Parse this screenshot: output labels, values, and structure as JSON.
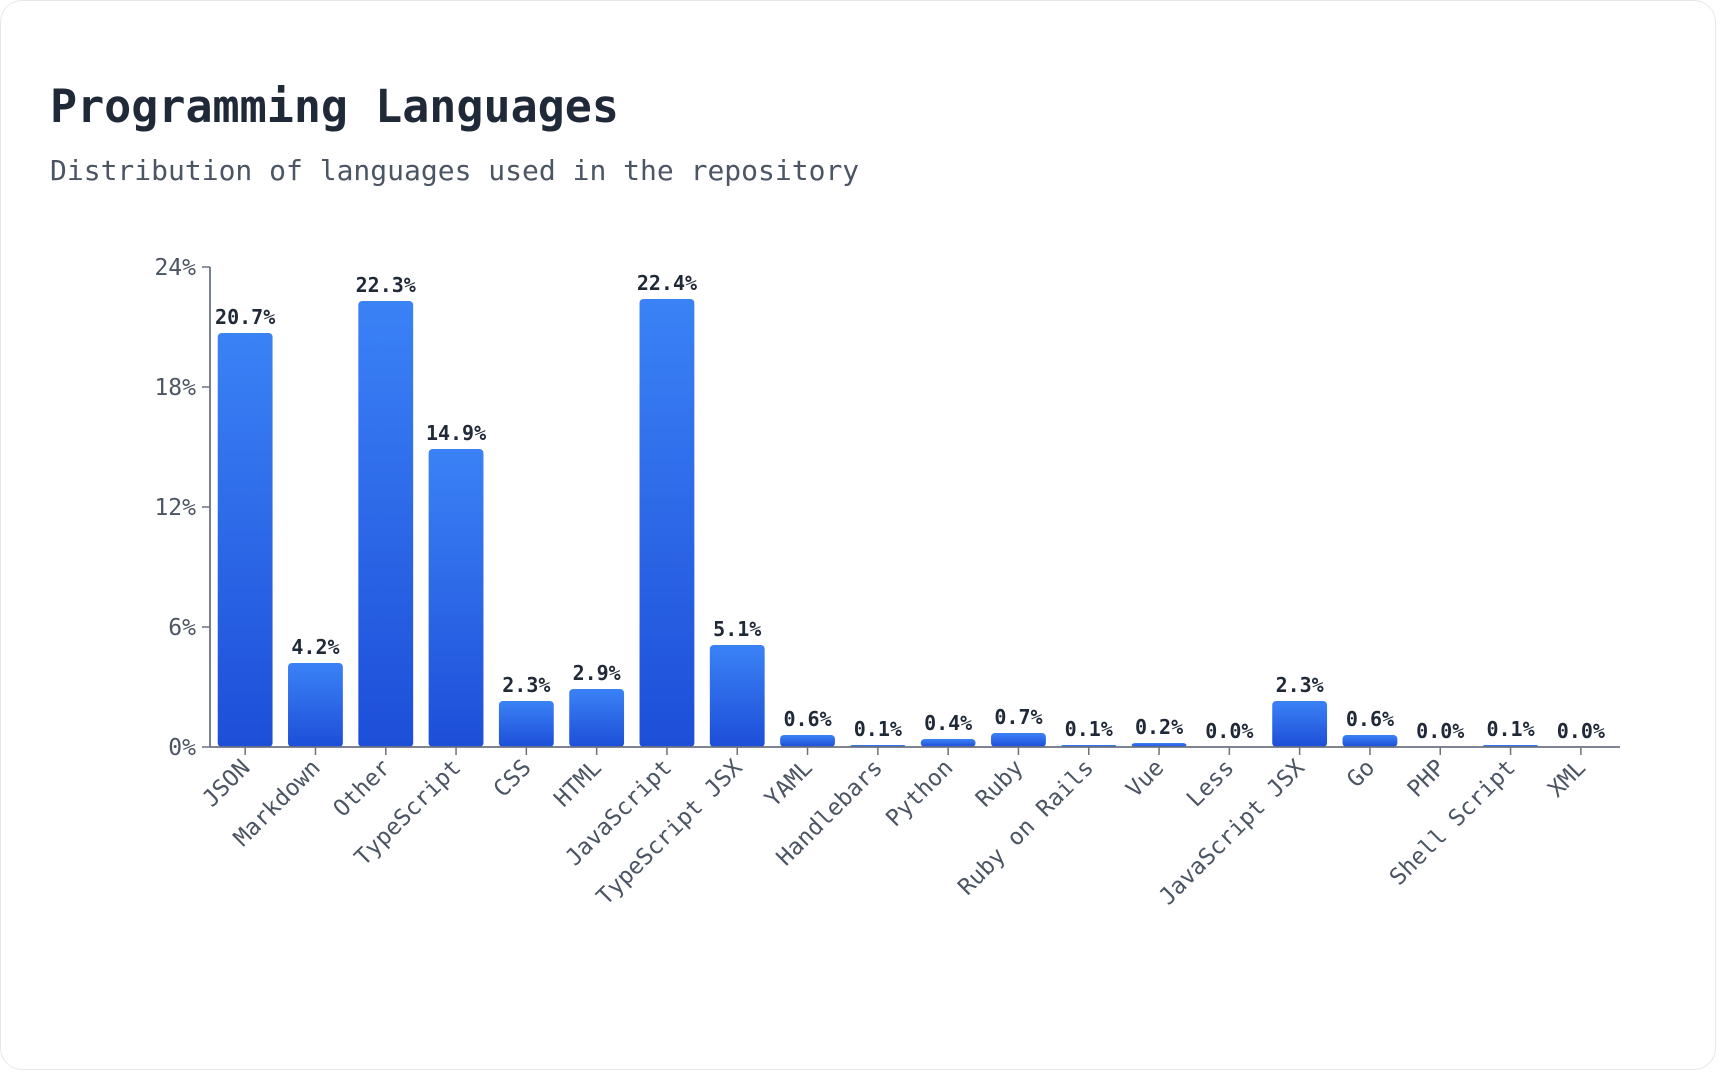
{
  "header": {
    "title": "Programming Languages",
    "subtitle": "Distribution of languages used in the repository"
  },
  "colors": {
    "bar_top": "#3b82f6",
    "bar_bottom": "#1d4ed8",
    "axis": "#6b7280",
    "text": "#1f2937",
    "muted": "#4b5563"
  },
  "chart_data": {
    "type": "bar",
    "title": "Programming Languages",
    "subtitle": "Distribution of languages used in the repository",
    "xlabel": "",
    "ylabel": "",
    "ylim": [
      0,
      24
    ],
    "yticks": [
      0,
      6,
      12,
      18,
      24
    ],
    "ytick_labels": [
      "0%",
      "6%",
      "12%",
      "18%",
      "24%"
    ],
    "grid": false,
    "legend": "none",
    "categories": [
      "JSON",
      "Markdown",
      "Other",
      "TypeScript",
      "CSS",
      "HTML",
      "JavaScript",
      "TypeScript JSX",
      "YAML",
      "Handlebars",
      "Python",
      "Ruby",
      "Ruby on Rails",
      "Vue",
      "Less",
      "JavaScript JSX",
      "Go",
      "PHP",
      "Shell Script",
      "XML"
    ],
    "values": [
      20.7,
      4.2,
      22.3,
      14.9,
      2.3,
      2.9,
      22.4,
      5.1,
      0.6,
      0.1,
      0.4,
      0.7,
      0.1,
      0.2,
      0.0,
      2.3,
      0.6,
      0.0,
      0.1,
      0.0
    ],
    "value_labels": [
      "20.7%",
      "4.2%",
      "22.3%",
      "14.9%",
      "2.3%",
      "2.9%",
      "22.4%",
      "5.1%",
      "0.6%",
      "0.1%",
      "0.4%",
      "0.7%",
      "0.1%",
      "0.2%",
      "0.0%",
      "2.3%",
      "0.6%",
      "0.0%",
      "0.1%",
      "0.0%"
    ]
  }
}
